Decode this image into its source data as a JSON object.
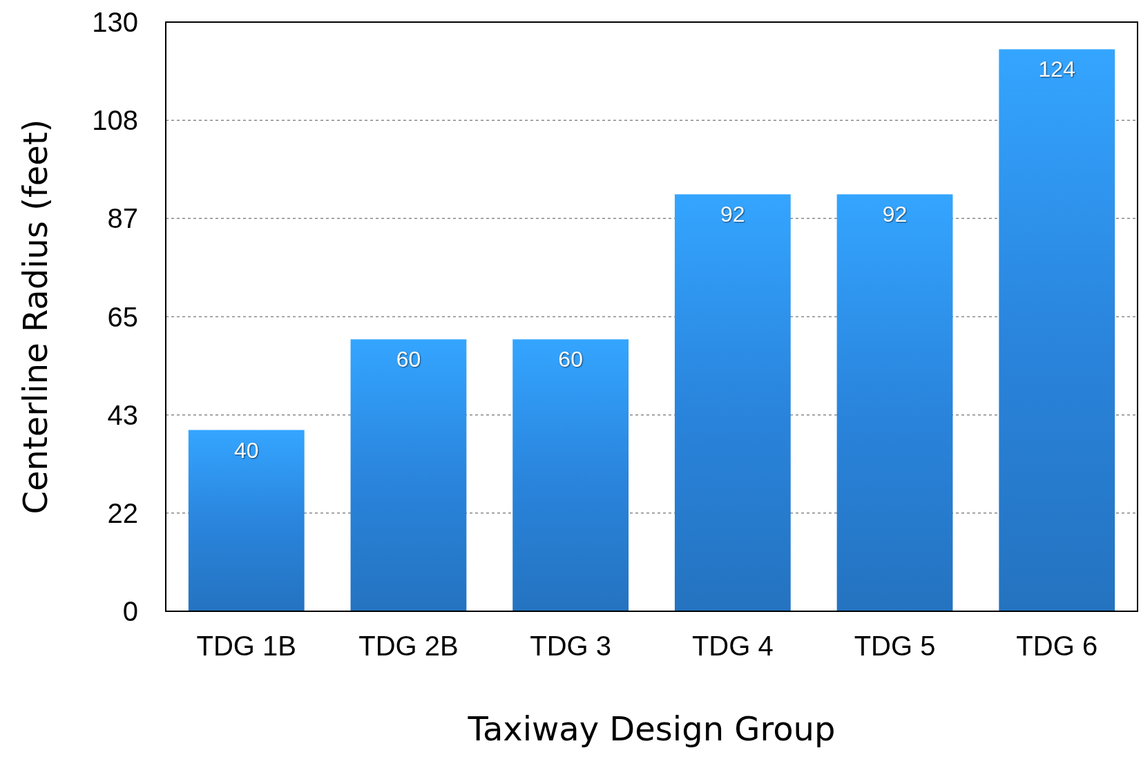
{
  "chart_data": {
    "type": "bar",
    "xlabel": "Taxiway Design Group",
    "ylabel": "Centerline Radius (feet)",
    "categories": [
      "TDG 1B",
      "TDG 2B",
      "TDG 3",
      "TDG 4",
      "TDG 5",
      "TDG 6"
    ],
    "values": [
      40,
      60,
      60,
      92,
      92,
      124
    ],
    "color": "#2a85dd",
    "ylim": [
      0,
      130
    ],
    "yticks": [
      0,
      {
        "value": 21.667,
        "label": "22"
      },
      {
        "value": 43.333,
        "label": "43"
      },
      65,
      {
        "value": 86.667,
        "label": "87"
      },
      {
        "value": 108.333,
        "label": "108"
      },
      130
    ],
    "grid": "y",
    "data_labels": true
  }
}
